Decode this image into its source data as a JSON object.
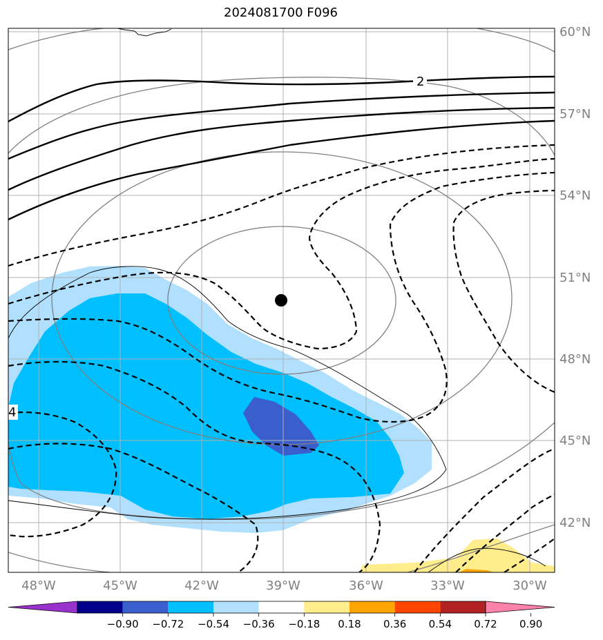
{
  "title": "2024081700 F096",
  "map": {
    "lat_labels": [
      "60°N",
      "57°N",
      "54°N",
      "51°N",
      "48°N",
      "45°N",
      "42°N"
    ],
    "lon_labels": [
      "48°W",
      "45°W",
      "42°W",
      "39°W",
      "36°W",
      "33°W",
      "30°W"
    ],
    "contour_labels": [
      "2",
      "4"
    ],
    "center_marker": "low-center-dot"
  },
  "colorbar": {
    "ticks": [
      "−0.90",
      "−0.72",
      "−0.54",
      "−0.36",
      "−0.18",
      "0.18",
      "0.36",
      "0.54",
      "0.72",
      "0.90"
    ],
    "colors": [
      "#9932cc",
      "#00008b",
      "#3a5fcd",
      "#00bfff",
      "#b0e0fe",
      "#ffffff",
      "#ffec8b",
      "#ffa500",
      "#ff4500",
      "#b22222",
      "#ff82ab"
    ]
  }
}
